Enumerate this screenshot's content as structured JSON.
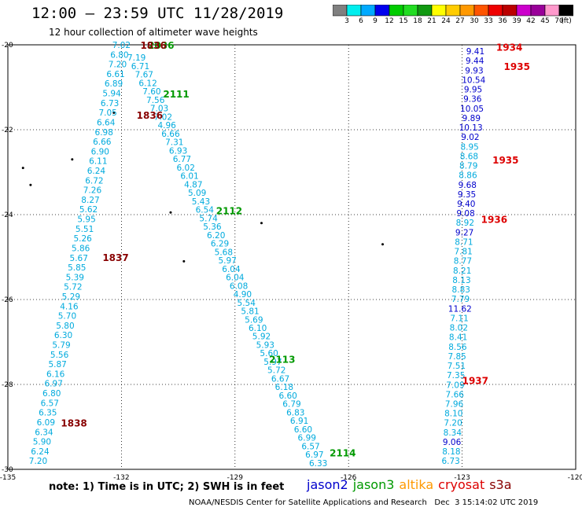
{
  "title": "12:00 – 23:59 UTC 11/28/2019",
  "subtitle": "12 hour collection of altimeter wave heights",
  "note": "note:  1) Time is in UTC;  2) SWH is in feet",
  "footer_left": "NOAA/NESDIS Center for Satellite Applications and Research",
  "footer_right": "Dec  3 15:14:02 UTC 2019",
  "legend": [
    {
      "name": "jason2",
      "color": "#0000cc"
    },
    {
      "name": "jason3",
      "color": "#009900"
    },
    {
      "name": "altika",
      "color": "#ff9900"
    },
    {
      "name": "cryosat",
      "color": "#dd0000"
    },
    {
      "name": "s3a",
      "color": "#880000"
    }
  ],
  "colorbar": {
    "colors": [
      "#808080",
      "#00eeee",
      "#00aaff",
      "#0000ee",
      "#00cc00",
      "#22dd22",
      "#119911",
      "#ffff00",
      "#ffcc00",
      "#ff9900",
      "#ff5500",
      "#ee0000",
      "#bb0000",
      "#cc00cc",
      "#990099",
      "#ff99cc",
      "#000000"
    ],
    "labels": [
      "3",
      "6",
      "9",
      "12",
      "15",
      "18",
      "21",
      "24",
      "27",
      "30",
      "33",
      "36",
      "39",
      "42",
      "45",
      "70",
      "(ft)"
    ]
  },
  "chart_data": {
    "type": "scatter",
    "title": "12:00 – 23:59 UTC 11/28/2019",
    "subtitle": "12 hour collection of altimeter wave heights",
    "xlabel": "",
    "ylabel": "",
    "xlim": [
      -135,
      -120
    ],
    "ylim": [
      -30,
      -20
    ],
    "x_ticks": [
      -135,
      -132,
      -129,
      -126,
      -123,
      -120
    ],
    "y_ticks": [
      -20,
      -22,
      -24,
      -26,
      -28,
      -30
    ],
    "grid": true,
    "tracks": [
      {
        "id": "a",
        "x0": -132.0,
        "y0": -20.0,
        "x1": -134.2,
        "y1": -29.8,
        "color": "#00aadd",
        "values": [
          "7.02",
          "6.80",
          "7.20",
          "6.61",
          "6.89",
          "5.94",
          "6.73",
          "7.05",
          "6.64",
          "6.98",
          "6.66",
          "6.90",
          "6.11",
          "6.24",
          "6.72",
          "7.26",
          "8.27",
          "5.62",
          "5.95",
          "5.51",
          "5.26",
          "5.86",
          "5.67",
          "5.85",
          "5.39",
          "5.72",
          "5.29",
          "4.16",
          "5.70",
          "5.80",
          "6.30",
          "5.79",
          "5.56",
          "5.87",
          "6.16",
          "6.97",
          "6.80",
          "6.57",
          "6.35",
          "6.09",
          "6.34",
          "5.90",
          "6.24",
          "7.20"
        ]
      },
      {
        "id": "b",
        "x0": -131.6,
        "y0": -20.3,
        "x1": -126.8,
        "y1": -29.85,
        "color": "#00aadd",
        "values": [
          "7.19",
          "6.71",
          "7.67",
          "6.12",
          "7.60",
          "7.56",
          "7.03",
          "7.02",
          "4.96",
          "6.66",
          "7.31",
          "6.93",
          "6.77",
          "6.02",
          "6.01",
          "4.87",
          "5.09",
          "5.43",
          "6.54",
          "5.74",
          "5.36",
          "6.20",
          "6.29",
          "5.68",
          "5.97",
          "6.04",
          "6.04",
          "6.08",
          "4.90",
          "5.54",
          "5.81",
          "5.69",
          "6.10",
          "5.92",
          "5.93",
          "5.60",
          "5.97",
          "5.72",
          "6.67",
          "6.18",
          "6.60",
          "6.79",
          "6.83",
          "6.91",
          "6.60",
          "6.99",
          "6.57",
          "6.97",
          "6.33"
        ]
      },
      {
        "id": "c",
        "x0": -122.65,
        "y0": -20.15,
        "x1": -123.3,
        "y1": -29.8,
        "color": "mixed",
        "values": [
          "9.41",
          "9.44",
          "9.93",
          "10.54",
          "9.95",
          "9.36",
          "10.05",
          "9.89",
          "10.13",
          "9.02",
          "8.95",
          "8.68",
          "8.79",
          "8.86",
          "9.68",
          "9.35",
          "9.40",
          "9.08",
          "8.92",
          "9.27",
          "8.71",
          "7.81",
          "8.77",
          "8.21",
          "8.13",
          "8.83",
          "7.79",
          "11.62",
          "7.11",
          "8.02",
          "8.41",
          "8.56",
          "7.85",
          "7.51",
          "7.35",
          "7.09",
          "7.66",
          "7.96",
          "8.10",
          "7.20",
          "8.34",
          "9.06",
          "8.18",
          "6.73"
        ]
      }
    ],
    "pass_labels": [
      {
        "text": "2036",
        "x": -131.3,
        "y": -20.0,
        "satellite": "jason3"
      },
      {
        "text": "1836",
        "x": -131.5,
        "y": -20.0,
        "satellite": "s3a"
      },
      {
        "text": "2111",
        "x": -130.9,
        "y": -21.15,
        "satellite": "jason3"
      },
      {
        "text": "1836",
        "x": -131.6,
        "y": -21.65,
        "satellite": "s3a"
      },
      {
        "text": "2112",
        "x": -129.5,
        "y": -23.9,
        "satellite": "jason3"
      },
      {
        "text": "1837",
        "x": -132.5,
        "y": -25.0,
        "satellite": "s3a"
      },
      {
        "text": "2113",
        "x": -128.1,
        "y": -27.4,
        "satellite": "jason3"
      },
      {
        "text": "1838",
        "x": -133.6,
        "y": -28.9,
        "satellite": "s3a"
      },
      {
        "text": "2114",
        "x": -126.5,
        "y": -29.6,
        "satellite": "jason3"
      },
      {
        "text": "1934",
        "x": -122.1,
        "y": -20.05,
        "satellite": "cryosat"
      },
      {
        "text": "1935",
        "x": -121.9,
        "y": -20.5,
        "satellite": "cryosat"
      },
      {
        "text": "1935",
        "x": -122.2,
        "y": -22.7,
        "satellite": "cryosat"
      },
      {
        "text": "1936",
        "x": -122.5,
        "y": -24.1,
        "satellite": "cryosat"
      },
      {
        "text": "1937",
        "x": -123.0,
        "y": -27.9,
        "satellite": "cryosat"
      }
    ]
  }
}
